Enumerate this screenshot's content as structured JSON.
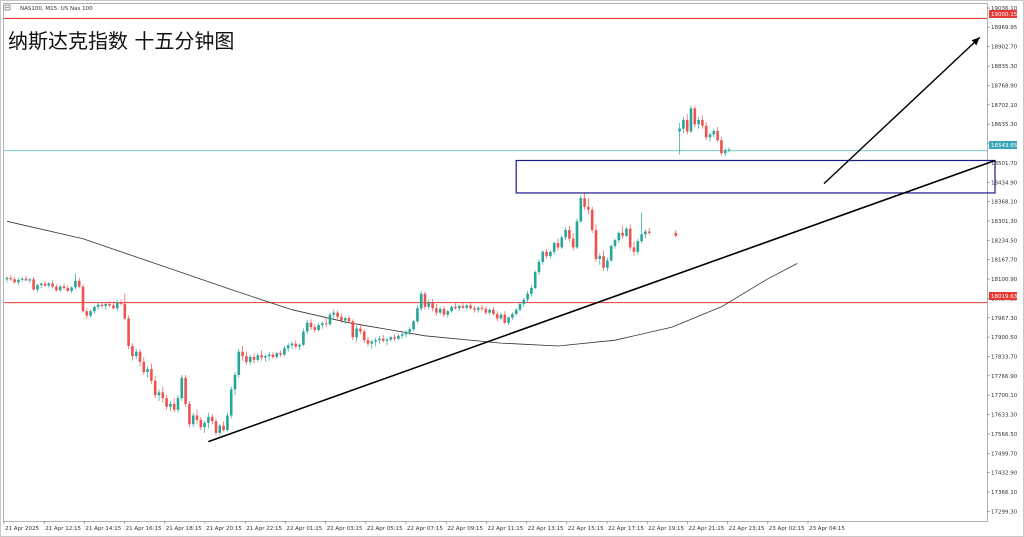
{
  "header": {
    "symbol_label": "NAS100, M15:  US Nas 100"
  },
  "chart_title": "纳斯达克指数 十五分钟图",
  "colors": {
    "up": "#26a69a",
    "down": "#ef5350",
    "red_line": "#e53935",
    "current_line": "#4fb8c8",
    "ma": "#333333",
    "box": "#1a1a8c",
    "trend": "#000000",
    "badge_red": "#e53935",
    "badge_teal": "#3aa6b9"
  },
  "y_ticks": [
    "19036.10",
    "18969.95",
    "18902.70",
    "18835.30",
    "18768.90",
    "18702.10",
    "18635.30",
    "18568.50",
    "18501.70",
    "18434.90",
    "18368.10",
    "18301.30",
    "18234.50",
    "18167.70",
    "18100.90",
    "18034.10",
    "17967.30",
    "17900.50",
    "17833.70",
    "17766.90",
    "17700.10",
    "17633.30",
    "17566.50",
    "17499.70",
    "17432.90",
    "17366.10",
    "17299.30"
  ],
  "x_ticks": [
    "21 Apr 2025",
    "21 Apr 12:15",
    "21 Apr 14:15",
    "21 Apr 16:15",
    "21 Apr 18:15",
    "21 Apr 20:15",
    "21 Apr 22:15",
    "22 Apr 01:15",
    "22 Apr 03:15",
    "22 Apr 05:15",
    "22 Apr 07:15",
    "22 Apr 09:15",
    "22 Apr 11:15",
    "22 Apr 13:15",
    "22 Apr 15:15",
    "22 Apr 17:15",
    "22 Apr 19:15",
    "22 Apr 21:15",
    "22 Apr 23:15",
    "23 Apr 02:15",
    "23 Apr 04:15"
  ],
  "price_badges": {
    "upper": "19000.15",
    "current": "18543.65",
    "lower": "18019.63"
  },
  "chart_data": {
    "type": "candlestick",
    "ylim": [
      17266,
      19050
    ],
    "levels": {
      "upper_red": 19000.15,
      "current": 18543.65,
      "lower_red": 18019.63
    },
    "box": {
      "top": 18510,
      "bottom": 18398,
      "from_index": 134,
      "to_index": 260
    },
    "trendline": {
      "from": {
        "index": 53,
        "price": 17540
      },
      "to": {
        "index": 260,
        "price": 18510
      }
    },
    "arrow": {
      "from": {
        "index": 215,
        "price": 18430
      },
      "to": {
        "index": 256,
        "price": 18935
      }
    },
    "ma": [
      {
        "i": 0,
        "p": 18300
      },
      {
        "i": 20,
        "p": 18240
      },
      {
        "i": 40,
        "p": 18150
      },
      {
        "i": 60,
        "p": 18060
      },
      {
        "i": 75,
        "p": 17995
      },
      {
        "i": 90,
        "p": 17950
      },
      {
        "i": 110,
        "p": 17905
      },
      {
        "i": 130,
        "p": 17880
      },
      {
        "i": 145,
        "p": 17870
      },
      {
        "i": 160,
        "p": 17890
      },
      {
        "i": 175,
        "p": 17935
      },
      {
        "i": 188,
        "p": 18005
      },
      {
        "i": 200,
        "p": 18100
      },
      {
        "i": 208,
        "p": 18155
      }
    ],
    "ohlc": [
      [
        18100,
        18110,
        18090,
        18105
      ],
      [
        18105,
        18115,
        18095,
        18100
      ],
      [
        18100,
        18108,
        18085,
        18090
      ],
      [
        18090,
        18105,
        18080,
        18098
      ],
      [
        18098,
        18110,
        18092,
        18102
      ],
      [
        18102,
        18112,
        18095,
        18096
      ],
      [
        18096,
        18104,
        18088,
        18100
      ],
      [
        18100,
        18108,
        18060,
        18065
      ],
      [
        18065,
        18085,
        18055,
        18080
      ],
      [
        18080,
        18090,
        18070,
        18085
      ],
      [
        18085,
        18095,
        18074,
        18078
      ],
      [
        18078,
        18090,
        18072,
        18086
      ],
      [
        18086,
        18096,
        18070,
        18075
      ],
      [
        18075,
        18082,
        18058,
        18062
      ],
      [
        18062,
        18080,
        18058,
        18075
      ],
      [
        18075,
        18085,
        18064,
        18070
      ],
      [
        18070,
        18078,
        18055,
        18060
      ],
      [
        18060,
        18075,
        18052,
        18072
      ],
      [
        18072,
        18120,
        18065,
        18095
      ],
      [
        18095,
        18105,
        18070,
        18075
      ],
      [
        18075,
        18082,
        17985,
        17990
      ],
      [
        17990,
        18000,
        17965,
        17975
      ],
      [
        17975,
        17995,
        17968,
        17990
      ],
      [
        17990,
        18010,
        17982,
        18005
      ],
      [
        18005,
        18020,
        17995,
        18012
      ],
      [
        18012,
        18022,
        18000,
        18008
      ],
      [
        18008,
        18018,
        17995,
        18015
      ],
      [
        18015,
        18025,
        18005,
        18010
      ],
      [
        18010,
        18025,
        17995,
        18000
      ],
      [
        18000,
        18030,
        17990,
        18020
      ],
      [
        18020,
        18030,
        18010,
        18015
      ],
      [
        18015,
        18050,
        17960,
        17965
      ],
      [
        17965,
        17975,
        17860,
        17870
      ],
      [
        17870,
        17880,
        17820,
        17835
      ],
      [
        17835,
        17860,
        17825,
        17850
      ],
      [
        17850,
        17860,
        17800,
        17815
      ],
      [
        17815,
        17830,
        17770,
        17780
      ],
      [
        17780,
        17800,
        17760,
        17790
      ],
      [
        17790,
        17810,
        17740,
        17750
      ],
      [
        17750,
        17765,
        17690,
        17700
      ],
      [
        17700,
        17720,
        17680,
        17710
      ],
      [
        17710,
        17730,
        17675,
        17690
      ],
      [
        17690,
        17700,
        17650,
        17660
      ],
      [
        17660,
        17680,
        17645,
        17670
      ],
      [
        17670,
        17690,
        17640,
        17650
      ],
      [
        17650,
        17700,
        17640,
        17690
      ],
      [
        17690,
        17770,
        17680,
        17760
      ],
      [
        17760,
        17770,
        17660,
        17670
      ],
      [
        17670,
        17680,
        17590,
        17600
      ],
      [
        17600,
        17640,
        17590,
        17630
      ],
      [
        17630,
        17650,
        17600,
        17615
      ],
      [
        17615,
        17625,
        17580,
        17590
      ],
      [
        17590,
        17610,
        17570,
        17605
      ],
      [
        17605,
        17640,
        17585,
        17625
      ],
      [
        17625,
        17635,
        17600,
        17610
      ],
      [
        17610,
        17620,
        17560,
        17570
      ],
      [
        17570,
        17600,
        17560,
        17595
      ],
      [
        17595,
        17610,
        17575,
        17580
      ],
      [
        17580,
        17640,
        17575,
        17630
      ],
      [
        17630,
        17730,
        17620,
        17720
      ],
      [
        17720,
        17780,
        17700,
        17770
      ],
      [
        17770,
        17860,
        17760,
        17850
      ],
      [
        17850,
        17870,
        17820,
        17835
      ],
      [
        17835,
        17850,
        17805,
        17815
      ],
      [
        17815,
        17840,
        17805,
        17832
      ],
      [
        17832,
        17845,
        17810,
        17822
      ],
      [
        17822,
        17845,
        17815,
        17838
      ],
      [
        17838,
        17855,
        17820,
        17830
      ],
      [
        17830,
        17840,
        17815,
        17835
      ],
      [
        17835,
        17850,
        17820,
        17840
      ],
      [
        17840,
        17850,
        17825,
        17832
      ],
      [
        17832,
        17848,
        17826,
        17845
      ],
      [
        17845,
        17855,
        17832,
        17840
      ],
      [
        17840,
        17870,
        17835,
        17862
      ],
      [
        17862,
        17880,
        17850,
        17872
      ],
      [
        17872,
        17885,
        17860,
        17878
      ],
      [
        17878,
        17890,
        17860,
        17868
      ],
      [
        17868,
        17880,
        17855,
        17874
      ],
      [
        17874,
        17930,
        17868,
        17920
      ],
      [
        17920,
        17960,
        17910,
        17950
      ],
      [
        17950,
        17962,
        17925,
        17935
      ],
      [
        17935,
        17945,
        17915,
        17925
      ],
      [
        17925,
        17950,
        17920,
        17942
      ],
      [
        17942,
        17955,
        17930,
        17948
      ],
      [
        17948,
        17970,
        17935,
        17945
      ],
      [
        17945,
        17985,
        17940,
        17978
      ],
      [
        17978,
        17995,
        17965,
        17985
      ],
      [
        17985,
        17992,
        17962,
        17970
      ],
      [
        17970,
        17982,
        17950,
        17958
      ],
      [
        17958,
        17972,
        17945,
        17966
      ],
      [
        17966,
        17975,
        17948,
        17955
      ],
      [
        17955,
        17962,
        17890,
        17900
      ],
      [
        17900,
        17940,
        17885,
        17930
      ],
      [
        17930,
        17945,
        17910,
        17920
      ],
      [
        17920,
        17928,
        17880,
        17890
      ],
      [
        17890,
        17900,
        17868,
        17878
      ],
      [
        17878,
        17892,
        17860,
        17885
      ],
      [
        17885,
        17898,
        17870,
        17890
      ],
      [
        17890,
        17905,
        17878,
        17895
      ],
      [
        17895,
        17908,
        17882,
        17888
      ],
      [
        17888,
        17900,
        17872,
        17892
      ],
      [
        17892,
        17905,
        17885,
        17900
      ],
      [
        17900,
        17910,
        17888,
        17895
      ],
      [
        17895,
        17910,
        17890,
        17905
      ],
      [
        17905,
        17918,
        17895,
        17910
      ],
      [
        17910,
        17925,
        17900,
        17918
      ],
      [
        17918,
        17935,
        17908,
        17928
      ],
      [
        17928,
        17960,
        17920,
        17955
      ],
      [
        17955,
        18010,
        17948,
        18000
      ],
      [
        18000,
        18060,
        17990,
        18050
      ],
      [
        18050,
        18058,
        17995,
        18005
      ],
      [
        18005,
        18030,
        17995,
        18020
      ],
      [
        18020,
        18032,
        17990,
        18000
      ],
      [
        18000,
        18015,
        17975,
        17985
      ],
      [
        17985,
        18005,
        17978,
        17998
      ],
      [
        17998,
        18008,
        17970,
        17978
      ],
      [
        17978,
        17995,
        17968,
        17990
      ],
      [
        17990,
        18010,
        17985,
        18005
      ],
      [
        18005,
        18018,
        17995,
        18000
      ],
      [
        18000,
        18012,
        17990,
        18008
      ],
      [
        18008,
        18020,
        17998,
        18002
      ],
      [
        18002,
        18015,
        17992,
        18010
      ],
      [
        18010,
        18022,
        17996,
        18000
      ],
      [
        18000,
        18008,
        17985,
        17995
      ],
      [
        17995,
        18008,
        17985,
        18002
      ],
      [
        18002,
        18012,
        17990,
        17998
      ],
      [
        17998,
        18006,
        17978,
        17985
      ],
      [
        17985,
        18000,
        17978,
        17995
      ],
      [
        17995,
        18005,
        17975,
        17980
      ],
      [
        17980,
        17990,
        17955,
        17965
      ],
      [
        17965,
        17985,
        17960,
        17978
      ],
      [
        17978,
        17990,
        17945,
        17950
      ],
      [
        17950,
        17972,
        17942,
        17968
      ],
      [
        17968,
        17985,
        17960,
        17980
      ],
      [
        17980,
        18000,
        17975,
        17995
      ],
      [
        17995,
        18020,
        17990,
        18015
      ],
      [
        18015,
        18035,
        18005,
        18030
      ],
      [
        18030,
        18060,
        18020,
        18050
      ],
      [
        18050,
        18080,
        18040,
        18070
      ],
      [
        18070,
        18130,
        18065,
        18125
      ],
      [
        18125,
        18170,
        18115,
        18160
      ],
      [
        18160,
        18200,
        18150,
        18195
      ],
      [
        18195,
        18205,
        18170,
        18180
      ],
      [
        18180,
        18200,
        18172,
        18195
      ],
      [
        18195,
        18230,
        18185,
        18225
      ],
      [
        18225,
        18240,
        18200,
        18210
      ],
      [
        18210,
        18250,
        18205,
        18245
      ],
      [
        18245,
        18280,
        18235,
        18270
      ],
      [
        18270,
        18285,
        18230,
        18240
      ],
      [
        18240,
        18260,
        18200,
        18210
      ],
      [
        18210,
        18310,
        18205,
        18300
      ],
      [
        18300,
        18390,
        18295,
        18380
      ],
      [
        18380,
        18400,
        18340,
        18350
      ],
      [
        18350,
        18380,
        18325,
        18340
      ],
      [
        18340,
        18350,
        18260,
        18270
      ],
      [
        18270,
        18290,
        18160,
        18170
      ],
      [
        18170,
        18190,
        18150,
        18180
      ],
      [
        18180,
        18200,
        18130,
        18140
      ],
      [
        18140,
        18175,
        18128,
        18165
      ],
      [
        18165,
        18220,
        18160,
        18215
      ],
      [
        18215,
        18240,
        18205,
        18235
      ],
      [
        18235,
        18265,
        18225,
        18260
      ],
      [
        18260,
        18285,
        18240,
        18250
      ],
      [
        18250,
        18280,
        18245,
        18275
      ],
      [
        18275,
        18290,
        18200,
        18210
      ],
      [
        18210,
        18230,
        18180,
        18195
      ],
      [
        18195,
        18240,
        18185,
        18232
      ],
      [
        18232,
        18330,
        18225,
        18255
      ],
      [
        18255,
        18272,
        18240,
        18265
      ],
      [
        18265,
        18278,
        18252,
        18260
      ],
      [
        18260,
        18270,
        18245,
        18250
      ],
      [
        18610,
        18640,
        18530,
        18620
      ],
      [
        18620,
        18660,
        18605,
        18650
      ],
      [
        18650,
        18670,
        18600,
        18610
      ],
      [
        18610,
        18700,
        18605,
        18690
      ],
      [
        18690,
        18700,
        18625,
        18635
      ],
      [
        18635,
        18660,
        18620,
        18650
      ],
      [
        18650,
        18665,
        18620,
        18630
      ],
      [
        18630,
        18642,
        18580,
        18590
      ],
      [
        18590,
        18608,
        18575,
        18600
      ],
      [
        18600,
        18620,
        18590,
        18612
      ],
      [
        18612,
        18625,
        18575,
        18580
      ],
      [
        18580,
        18590,
        18528,
        18535
      ],
      [
        18535,
        18552,
        18525,
        18545
      ],
      [
        18545,
        18555,
        18538,
        18548
      ]
    ]
  }
}
